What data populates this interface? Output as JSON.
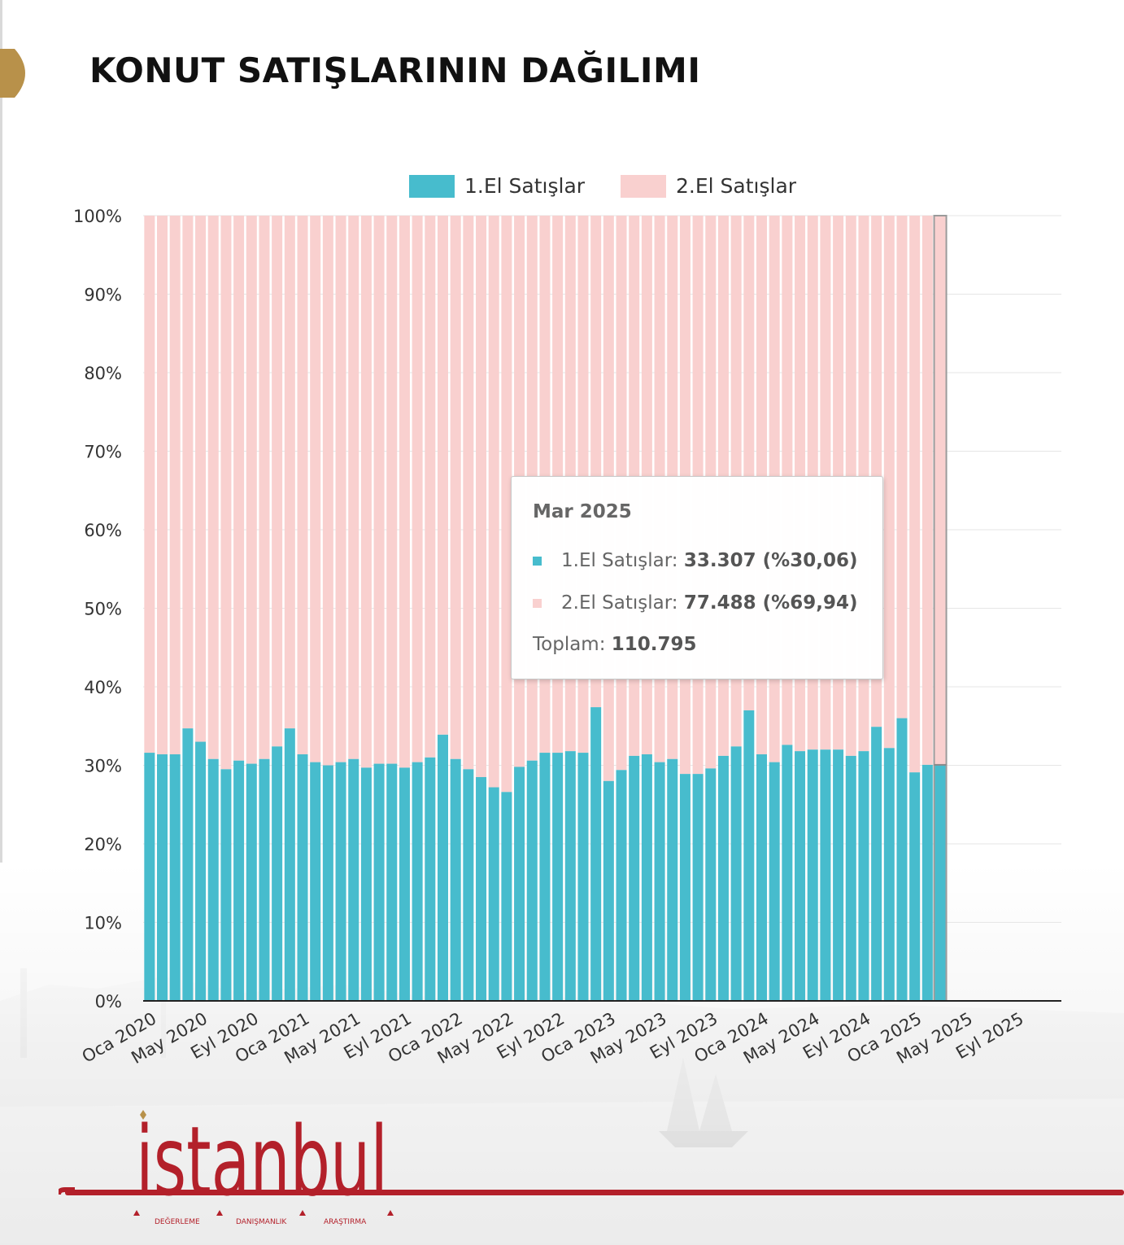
{
  "title": "KONUT SATIŞLARININ DAĞILIMI",
  "colors": {
    "first_hand": "#47bccd",
    "second_hand": "#f9d0cf",
    "brand_red": "#b3202a",
    "gold": "#b8914a"
  },
  "legend": {
    "first_hand": "1.El Satışlar",
    "second_hand": "2.El Satışlar"
  },
  "tooltip": {
    "period": "Mar 2025",
    "first_label": "1.El Satışlar:",
    "first_value": "33.307 (%30,06)",
    "second_label": "2.El Satışlar:",
    "second_value": "77.488 (%69,94)",
    "total_label": "Toplam:",
    "total_value": "110.795"
  },
  "logo": {
    "wordmark": "istanbul",
    "tagline": [
      "DEĞERLEME",
      "DANIŞMANLIK",
      "ARAŞTIRMA"
    ]
  },
  "chart_data": {
    "type": "bar",
    "stacked": true,
    "normalized_percent": true,
    "y_ticks": [
      "0%",
      "10%",
      "20%",
      "30%",
      "40%",
      "50%",
      "60%",
      "70%",
      "80%",
      "90%",
      "100%"
    ],
    "ylim": [
      0,
      100
    ],
    "x_tick_labels": [
      "Oca 2020",
      "May 2020",
      "Eyl 2020",
      "Oca 2021",
      "May 2021",
      "Eyl 2021",
      "Oca 2022",
      "May 2022",
      "Eyl 2022",
      "Oca 2023",
      "May 2023",
      "Eyl 2023",
      "Oca 2024",
      "May 2024",
      "Eyl 2024",
      "Oca 2025",
      "May 2025",
      "Eyl 2025"
    ],
    "x_range": [
      "2020-01",
      "2025-12"
    ],
    "categories": [
      "2020-01",
      "2020-02",
      "2020-03",
      "2020-04",
      "2020-05",
      "2020-06",
      "2020-07",
      "2020-08",
      "2020-09",
      "2020-10",
      "2020-11",
      "2020-12",
      "2021-01",
      "2021-02",
      "2021-03",
      "2021-04",
      "2021-05",
      "2021-06",
      "2021-07",
      "2021-08",
      "2021-09",
      "2021-10",
      "2021-11",
      "2021-12",
      "2022-01",
      "2022-02",
      "2022-03",
      "2022-04",
      "2022-05",
      "2022-06",
      "2022-07",
      "2022-08",
      "2022-09",
      "2022-10",
      "2022-11",
      "2022-12",
      "2023-01",
      "2023-02",
      "2023-03",
      "2023-04",
      "2023-05",
      "2023-06",
      "2023-07",
      "2023-08",
      "2023-09",
      "2023-10",
      "2023-11",
      "2023-12",
      "2024-01",
      "2024-02",
      "2024-03",
      "2024-04",
      "2024-05",
      "2024-06",
      "2024-07",
      "2024-08",
      "2024-09",
      "2024-10",
      "2024-11",
      "2024-12",
      "2025-01",
      "2025-02",
      "2025-03"
    ],
    "highlighted_category": "2025-03",
    "series": [
      {
        "name": "1.El Satışlar",
        "values": [
          31.6,
          31.4,
          31.4,
          34.7,
          33.0,
          30.8,
          29.5,
          30.6,
          30.2,
          30.8,
          32.4,
          34.7,
          31.4,
          30.4,
          30.0,
          30.4,
          30.8,
          29.7,
          30.2,
          30.2,
          29.7,
          30.4,
          31.0,
          33.9,
          30.8,
          29.5,
          28.5,
          27.2,
          26.6,
          29.8,
          30.6,
          31.6,
          31.6,
          31.8,
          31.6,
          37.4,
          28.0,
          29.4,
          31.2,
          31.4,
          30.4,
          30.8,
          28.9,
          28.9,
          29.6,
          31.2,
          32.4,
          37.0,
          31.4,
          30.4,
          32.6,
          31.8,
          32.0,
          32.0,
          32.0,
          31.2,
          31.8,
          34.9,
          32.2,
          36.0,
          29.1,
          30.06,
          30.06
        ]
      },
      {
        "name": "2.El Satışlar",
        "values": [
          68.4,
          68.6,
          68.6,
          65.3,
          67.0,
          69.2,
          70.5,
          69.4,
          69.8,
          69.2,
          67.6,
          65.3,
          68.6,
          69.6,
          70.0,
          69.6,
          69.2,
          70.3,
          69.8,
          69.8,
          70.3,
          69.6,
          69.0,
          66.1,
          69.2,
          70.5,
          71.5,
          72.8,
          73.4,
          70.2,
          69.4,
          68.4,
          68.4,
          68.2,
          68.4,
          62.6,
          72.0,
          70.6,
          68.8,
          68.6,
          69.6,
          69.2,
          71.1,
          71.1,
          70.4,
          68.8,
          67.6,
          63.0,
          68.6,
          69.6,
          67.4,
          68.2,
          68.0,
          68.0,
          68.0,
          68.8,
          68.2,
          65.1,
          67.8,
          64.0,
          70.9,
          69.94,
          69.94
        ]
      }
    ]
  }
}
